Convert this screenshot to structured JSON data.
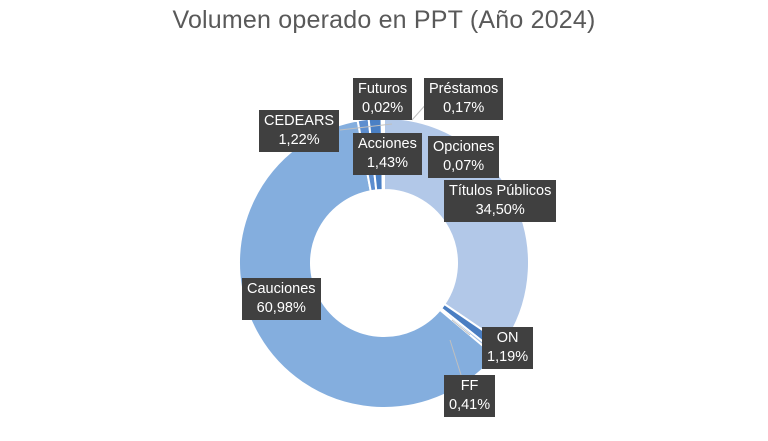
{
  "chart_data": {
    "type": "pie",
    "title": "Volumen operado  en PPT (Año 2024)",
    "slices": [
      {
        "label": "Títulos Públicos",
        "value": 34.5,
        "value_text": "34,50%",
        "color": "#b2c8e8"
      },
      {
        "label": "ON",
        "value": 1.19,
        "value_text": "1,19%",
        "color": "#4a7ec2"
      },
      {
        "label": "FF",
        "value": 0.41,
        "value_text": "0,41%",
        "color": "#a5c1e6"
      },
      {
        "label": "Cauciones",
        "value": 60.98,
        "value_text": "60,98%",
        "color": "#84aede"
      },
      {
        "label": "CEDEARS",
        "value": 1.22,
        "value_text": "1,22%",
        "color": "#5d8ecf"
      },
      {
        "label": "Acciones",
        "value": 1.43,
        "value_text": "1,43%",
        "color": "#4a80c5"
      },
      {
        "label": "Futuros",
        "value": 0.02,
        "value_text": "0,02%",
        "color": "#3b6fb5"
      },
      {
        "label": "Préstamos",
        "value": 0.17,
        "value_text": "0,17%",
        "color": "#7aa3d8"
      },
      {
        "label": "Opciones",
        "value": 0.07,
        "value_text": "0,07%",
        "color": "#2f5f9e"
      }
    ]
  }
}
